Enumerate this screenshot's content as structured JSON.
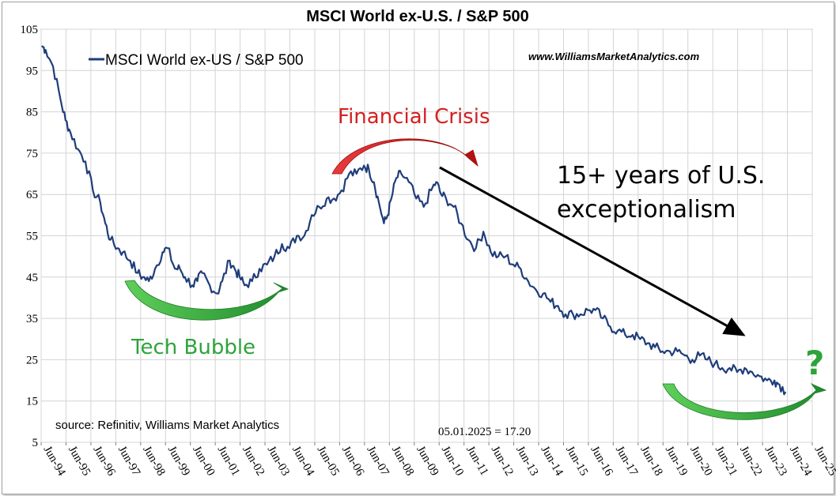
{
  "chart_data": {
    "type": "line",
    "title": "MSCI World ex-U.S. / S&P 500",
    "series": [
      {
        "name": "MSCI World ex-US / S&P 500",
        "color": "#1f3d7a",
        "x": [
          1994.45,
          1994.6,
          1994.9,
          1995.2,
          1995.4,
          1995.6,
          1995.9,
          1996.2,
          1996.5,
          1996.8,
          1997.0,
          1997.2,
          1997.5,
          1997.7,
          1998.0,
          1998.3,
          1998.5,
          1998.75,
          1999.0,
          1999.3,
          1999.5,
          1999.8,
          2000.0,
          2000.2,
          2000.5,
          2000.7,
          2000.9,
          2001.2,
          2001.5,
          2001.7,
          2002.0,
          2002.2,
          2002.4,
          2002.6,
          2002.9,
          2003.2,
          2003.5,
          2003.8,
          2004.1,
          2004.4,
          2004.7,
          2005.0,
          2005.3,
          2005.6,
          2005.9,
          2006.2,
          2006.5,
          2006.8,
          2007.1,
          2007.4,
          2007.6,
          2007.8,
          2008.0,
          2008.2,
          2008.35,
          2008.5,
          2008.7,
          2008.9,
          2009.2,
          2009.5,
          2009.8,
          2010.1,
          2010.3,
          2010.5,
          2010.7,
          2011.0,
          2011.3,
          2011.6,
          2011.9,
          2012.2,
          2012.5,
          2012.8,
          2013.1,
          2013.4,
          2013.7,
          2014.0,
          2014.3,
          2014.6,
          2014.9,
          2015.2,
          2015.5,
          2015.8,
          2016.1,
          2016.4,
          2016.7,
          2017.0,
          2017.3,
          2017.6,
          2017.9,
          2018.2,
          2018.5,
          2018.8,
          2019.1,
          2019.4,
          2019.7,
          2020.0,
          2020.3,
          2020.6,
          2020.9,
          2021.2,
          2021.5,
          2021.8,
          2022.1,
          2022.4,
          2022.7,
          2023.0,
          2023.3,
          2023.6,
          2023.9,
          2024.1,
          2024.35
        ],
        "values": [
          101,
          100,
          96,
          88,
          83,
          80,
          76,
          73,
          66,
          63,
          58,
          54,
          52,
          51,
          49,
          46,
          45,
          44,
          47,
          51,
          52,
          47,
          47,
          45,
          43,
          44,
          46,
          43,
          41,
          44,
          49,
          47,
          45,
          43,
          44,
          47,
          48,
          50,
          53,
          52,
          55,
          55,
          60,
          62,
          64,
          64,
          66,
          70,
          70,
          72,
          71,
          68,
          63,
          58,
          60,
          64,
          69,
          70,
          68,
          64,
          62,
          66,
          68,
          65,
          64,
          62,
          58,
          54,
          52,
          56,
          51,
          50,
          50,
          48,
          47,
          44,
          42,
          41,
          39,
          38,
          36,
          36,
          36,
          37,
          37,
          35,
          33,
          32,
          31,
          31,
          30,
          29,
          28,
          27,
          27,
          27,
          26,
          25,
          26,
          25,
          24,
          23,
          23,
          22,
          23,
          22,
          21,
          20,
          20,
          19,
          17.2
        ]
      }
    ],
    "x_ticks": [
      "Jun-94",
      "Jun-95",
      "Jun-96",
      "Jun-97",
      "Jun-98",
      "Jun-99",
      "Jun-00",
      "Jun-01",
      "Jun-02",
      "Jun-03",
      "Jun-04",
      "Jun-05",
      "Jun-06",
      "Jun-07",
      "Jun-08",
      "Jun-09",
      "Jun-10",
      "Jun-11",
      "Jun-12",
      "Jun-13",
      "Jun-14",
      "Jun-15",
      "Jun-16",
      "Jun-17",
      "Jun-18",
      "Jun-19",
      "Jun-20",
      "Jun-21",
      "Jun-22",
      "Jun-23",
      "Jun-24",
      "Jun-25"
    ],
    "x_tick_values": [
      1994.42,
      1995.42,
      1996.42,
      1997.42,
      1998.42,
      1999.42,
      2000.42,
      2001.42,
      2002.42,
      2003.42,
      2004.42,
      2005.42,
      2006.42,
      2007.42,
      2008.42,
      2009.42,
      2010.42,
      2011.42,
      2012.42,
      2013.42,
      2014.42,
      2015.42,
      2016.42,
      2017.42,
      2018.42,
      2019.42,
      2020.42,
      2021.42,
      2022.42,
      2023.42,
      2024.42,
      2025.42
    ],
    "xlim": [
      1994.42,
      2025.42
    ],
    "y_ticks": [
      "105",
      "95",
      "85",
      "75",
      "65",
      "55",
      "45",
      "35",
      "25",
      "15",
      "5"
    ],
    "y_tick_values": [
      105,
      95,
      85,
      75,
      65,
      55,
      45,
      35,
      25,
      15,
      5
    ],
    "ylim": [
      5,
      105
    ],
    "grid": true,
    "legend_position": "top-left",
    "xlabel": "",
    "ylabel": ""
  },
  "annotations": {
    "website": "www.WilliamsMarketAnalytics.com",
    "financial_crisis": "Financial Crisis",
    "tech_bubble": "Tech Bubble",
    "exceptionalism_line1": "15+ years of U.S.",
    "exceptionalism_line2": "exceptionalism",
    "question_mark": "?",
    "source": "source: Refinitiv, Williams Market Analytics",
    "last_value": "05.01.2025 =  17.20"
  },
  "colors": {
    "red": "#d42020",
    "green": "#2ea33a",
    "black": "#000000",
    "grid": "#d4d4d4",
    "line": "#1f3d7a"
  }
}
